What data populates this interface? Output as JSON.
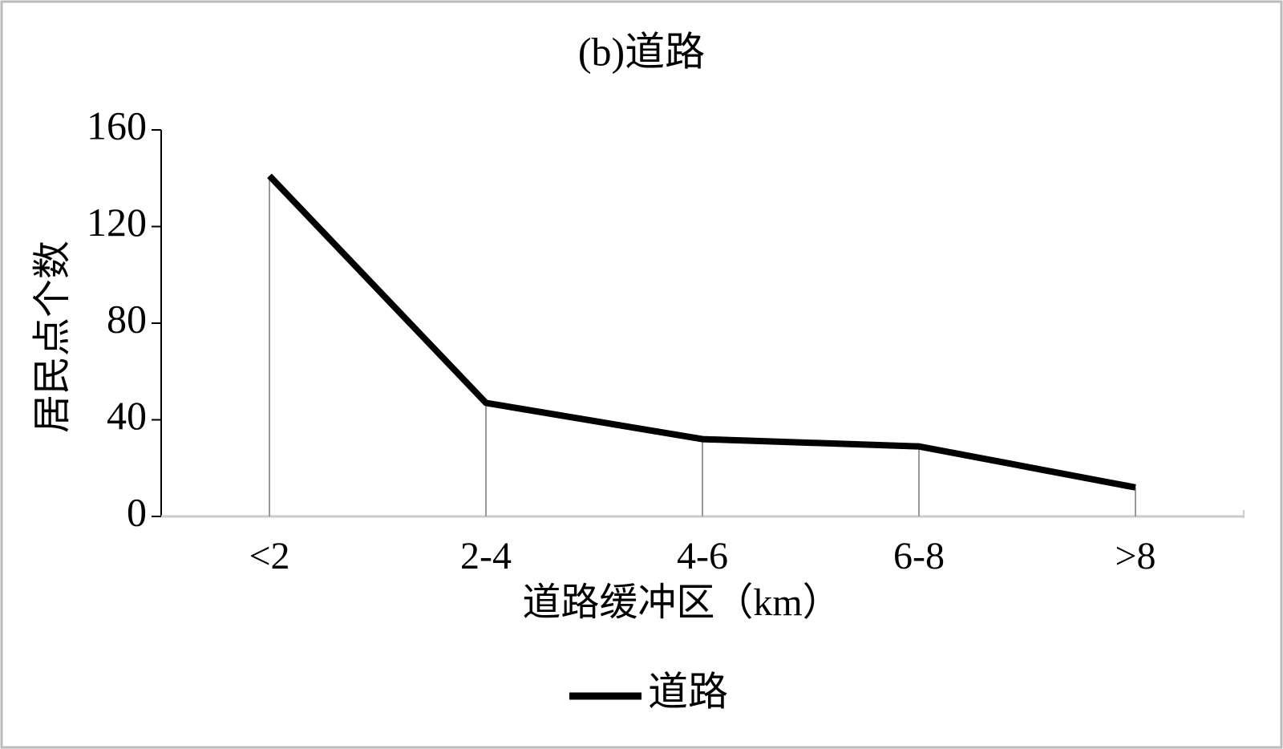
{
  "chart_data": {
    "type": "line",
    "title": "(b)道路",
    "x_label": "道路缓冲区（km）",
    "y_label": "居民点个数",
    "categories": [
      "<2",
      "2-4",
      "4-6",
      "6-8",
      ">8"
    ],
    "series": [
      {
        "name": "道路",
        "color": "#000000",
        "values": [
          141,
          47,
          32,
          29,
          12
        ]
      }
    ],
    "ylim": [
      0,
      160
    ],
    "yticks": [
      0,
      40,
      80,
      120,
      160
    ],
    "drop_lines": true,
    "legend": "bottom"
  }
}
